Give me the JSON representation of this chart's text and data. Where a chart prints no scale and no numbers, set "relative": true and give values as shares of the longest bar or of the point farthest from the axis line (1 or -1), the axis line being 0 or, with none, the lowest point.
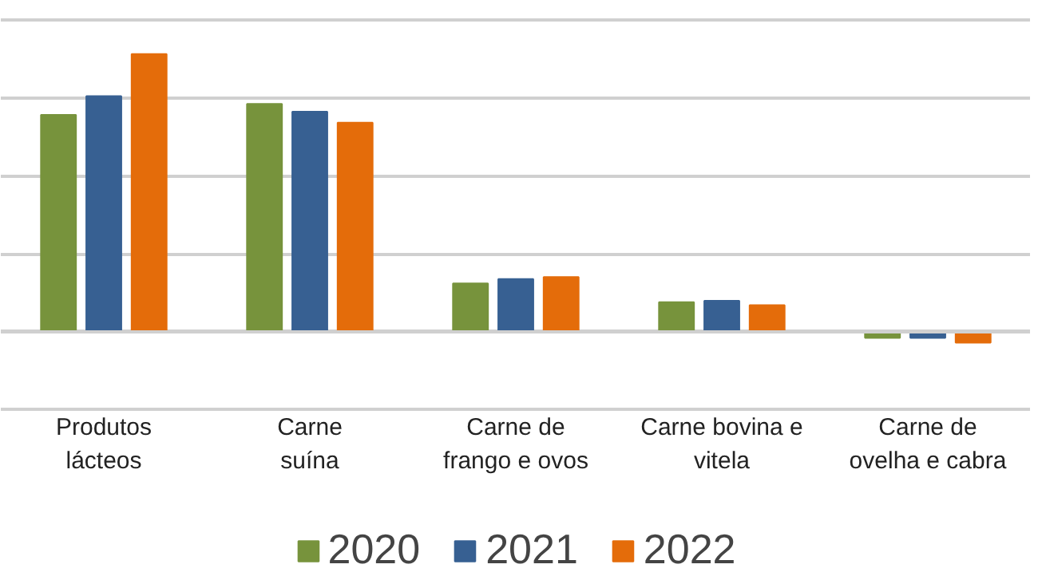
{
  "chart_data": {
    "type": "bar",
    "relative": true,
    "grid": "y",
    "legend": "bottom",
    "categories": [
      "Produtos\nlácteos",
      "Carne\nsuína",
      "Carne de\nfrango e ovos",
      "Carne bovina e\nvitela",
      "Carne de\novelha e cabra"
    ],
    "series": [
      {
        "name": "2020",
        "color": "#77933c",
        "values": [
          0.781,
          0.82,
          0.174,
          0.107,
          -0.022
        ]
      },
      {
        "name": "2021",
        "color": "#376092",
        "values": [
          0.848,
          0.792,
          0.19,
          0.112,
          -0.022
        ]
      },
      {
        "name": "2022",
        "color": "#e46c0a",
        "values": [
          1,
          0.753,
          0.197,
          0.096,
          -0.039
        ]
      }
    ]
  }
}
